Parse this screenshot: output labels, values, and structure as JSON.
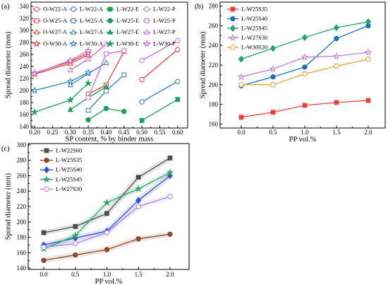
{
  "chart_data": [
    {
      "panel_label": "(a)",
      "type": "line",
      "xlabel": "SP content, % by binder mass",
      "ylabel": "Spread diameter (mm)",
      "xlim": [
        0.19,
        0.628
      ],
      "ylim": [
        137.5,
        347
      ],
      "xticks": [
        "0.20",
        "0.25",
        "0.30",
        "0.35",
        "0.40",
        "0.45",
        "0.50",
        "0.55",
        "0.60"
      ],
      "yticks": [
        "140",
        "160",
        "180",
        "200",
        "220",
        "240",
        "260",
        "280",
        "300",
        "320",
        "340"
      ],
      "grid": false,
      "legend": {
        "placement": "top-left",
        "columns": 4,
        "rows": 4
      },
      "series": [
        {
          "name": "O-W22-A",
          "color": "#e8413c",
          "marker": "circle",
          "filled": false,
          "x": [
            0.5,
            0.6
          ],
          "y": [
            218,
            268
          ]
        },
        {
          "name": "O-W25-A",
          "color": "#e8413c",
          "marker": "square",
          "filled": false,
          "x": [
            0.35,
            0.4,
            0.45
          ],
          "y": [
            194,
            209,
            265
          ]
        },
        {
          "name": "O-W27-A",
          "color": "#e8413c",
          "marker": "triangle",
          "filled": false,
          "x": [
            0.2,
            0.3,
            0.35
          ],
          "y": [
            227,
            245,
            259
          ]
        },
        {
          "name": "O-W30-A",
          "color": "#e8413c",
          "marker": "star",
          "filled": false,
          "x": [
            0.2,
            0.3,
            0.35
          ],
          "y": [
            229,
            248,
            262
          ]
        },
        {
          "name": "L-W22-A",
          "color": "#2f7ec1",
          "marker": "circle",
          "filled": false,
          "x": [
            0.5,
            0.6
          ],
          "y": [
            181,
            215
          ]
        },
        {
          "name": "L-W25-A",
          "color": "#2f7ec1",
          "marker": "square",
          "filled": false,
          "x": [
            0.35,
            0.4,
            0.45
          ],
          "y": [
            167,
            199,
            226
          ]
        },
        {
          "name": "L-W27-A",
          "color": "#2f7ec1",
          "marker": "triangle",
          "filled": false,
          "x": [
            0.3,
            0.35,
            0.4
          ],
          "y": [
            209,
            228,
            246
          ]
        },
        {
          "name": "L-W30-A",
          "color": "#2f7ec1",
          "marker": "star",
          "filled": false,
          "x": [
            0.2,
            0.3,
            0.35
          ],
          "y": [
            200,
            215,
            230
          ]
        },
        {
          "name": "L-W22-E",
          "color": "#1f9e5a",
          "marker": "square",
          "filled": true,
          "x": [
            0.5,
            0.6
          ],
          "y": [
            150,
            185
          ]
        },
        {
          "name": "L-W25-E",
          "color": "#1f9e5a",
          "marker": "circle",
          "filled": true,
          "x": [
            0.35,
            0.4,
            0.45
          ],
          "y": [
            151,
            170,
            165
          ]
        },
        {
          "name": "L-W27-E",
          "color": "#1f9e5a",
          "marker": "triangle",
          "filled": true,
          "x": [
            0.3,
            0.35,
            0.4
          ],
          "y": [
            168,
            188,
            206
          ]
        },
        {
          "name": "L-W30-E",
          "color": "#1f9e5a",
          "marker": "star",
          "filled": true,
          "x": [
            0.2,
            0.3,
            0.35
          ],
          "y": [
            164,
            184,
            212
          ]
        },
        {
          "name": "L-W22-P",
          "color": "#c86dd7",
          "marker": "circle",
          "filled": false,
          "x": [
            0.5,
            0.6
          ],
          "y": [
            250,
            283
          ]
        },
        {
          "name": "L-W25-P",
          "color": "#c86dd7",
          "marker": "square",
          "filled": false,
          "x": [
            0.35,
            0.4,
            0.45
          ],
          "y": [
            188,
            261,
            266
          ]
        },
        {
          "name": "L-W27-P",
          "color": "#c86dd7",
          "marker": "triangle",
          "filled": false,
          "x": [
            0.3,
            0.35,
            0.4
          ],
          "y": [
            234,
            252,
            277
          ]
        },
        {
          "name": "L-W30-P",
          "color": "#c86dd7",
          "marker": "star",
          "filled": false,
          "x": [
            0.2,
            0.3,
            0.35
          ],
          "y": [
            228,
            250,
            266
          ]
        }
      ]
    },
    {
      "panel_label": "(b)",
      "type": "line",
      "xlabel": "PP vol.%",
      "ylabel": "Spread diameter (mm)",
      "xlim": [
        -0.333,
        2.267
      ],
      "ylim": [
        156,
        284
      ],
      "xticks": [
        "0.0",
        "0.5",
        "1.0",
        "1.5",
        "2.0"
      ],
      "yticks": [
        "160",
        "180",
        "200",
        "220",
        "240",
        "260",
        "280"
      ],
      "grid": false,
      "legend": {
        "placement": "top-left",
        "columns": 1,
        "rows": 5
      },
      "series": [
        {
          "name": "L-W25S35",
          "color": "#e8413c",
          "marker": "square",
          "filled": true,
          "x": [
            0,
            0.5,
            1.0,
            1.5,
            2.0
          ],
          "y": [
            167,
            172,
            179,
            182,
            184
          ]
        },
        {
          "name": "L-W25S40",
          "color": "#1f6fb5",
          "marker": "circle",
          "filled": true,
          "x": [
            0,
            0.5,
            1.0,
            1.5,
            2.0
          ],
          "y": [
            199,
            208,
            218,
            247,
            260
          ]
        },
        {
          "name": "L-W25S45",
          "color": "#1fa463",
          "marker": "diamond",
          "filled": true,
          "x": [
            0,
            0.5,
            1.0,
            1.5,
            2.0
          ],
          "y": [
            226,
            237,
            248,
            258,
            264
          ]
        },
        {
          "name": "L-W27S30",
          "color": "#c47bde",
          "marker": "star",
          "filled": false,
          "x": [
            0,
            0.5,
            1.0,
            1.5,
            2.0
          ],
          "y": [
            208,
            216,
            228,
            229,
            233
          ]
        },
        {
          "name": "L-W30S20",
          "color": "#f0a030",
          "marker": "hexagon",
          "filled": false,
          "x": [
            0,
            0.5,
            1.0,
            1.5,
            2.0
          ],
          "y": [
            200,
            200,
            211,
            219,
            226
          ]
        }
      ]
    },
    {
      "panel_label": "(c)",
      "type": "line",
      "xlabel": "PP vol.%",
      "ylabel": "Spread diameter (mm)",
      "xlim": [
        -0.246,
        2.302
      ],
      "ylim": [
        138.2,
        301.8
      ],
      "xticks": [
        "0.0",
        "0.5",
        "1.0",
        "1.5",
        "2.0"
      ],
      "yticks": [
        "140",
        "160",
        "180",
        "200",
        "220",
        "240",
        "260",
        "280",
        "300"
      ],
      "grid": false,
      "shaded_bands": true,
      "legend": {
        "placement": "top-left",
        "columns": 1,
        "rows": 5
      },
      "series": [
        {
          "name": "L-W22S60",
          "color": "#4d4d4d",
          "marker": "square",
          "filled": true,
          "x": [
            0,
            0.5,
            1.0,
            1.5,
            2.0
          ],
          "y": [
            186,
            194,
            211,
            258,
            283
          ]
        },
        {
          "name": "L-W25S35",
          "color": "#8b4a2b",
          "marker": "circle",
          "filled": true,
          "x": [
            0,
            0.5,
            1.0,
            1.5,
            2.0
          ],
          "y": [
            150,
            157,
            164,
            178,
            184
          ]
        },
        {
          "name": "L-W25S40",
          "color": "#3353c8",
          "marker": "diamond",
          "filled": true,
          "x": [
            0,
            0.5,
            1.0,
            1.5,
            2.0
          ],
          "y": [
            170,
            179,
            188,
            228,
            260
          ]
        },
        {
          "name": "L-W25S45",
          "color": "#2fa36b",
          "marker": "star",
          "filled": true,
          "x": [
            0,
            0.5,
            1.0,
            1.5,
            2.0
          ],
          "y": [
            165,
            182,
            225,
            243,
            264
          ]
        },
        {
          "name": "L-W27S30",
          "color": "#a286e3",
          "marker": "circle",
          "filled": false,
          "x": [
            0,
            0.5,
            1.0,
            1.5,
            2.0
          ],
          "y": [
            167,
            172,
            186,
            220,
            233
          ]
        }
      ]
    }
  ]
}
